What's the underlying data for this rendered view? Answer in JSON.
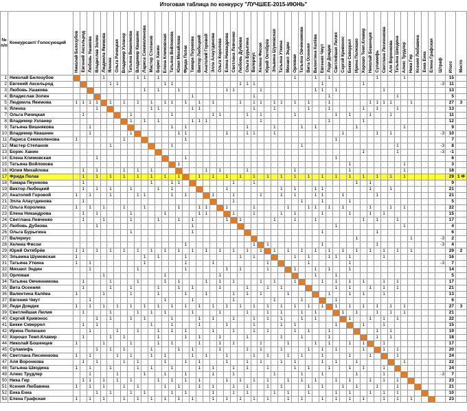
{
  "title": "Итоговая таблица по конкурсу \"ЛУЧШЕЕ-2015-ИЮНЬ\"",
  "header": {
    "num_label": "№ п/п",
    "name_label": "Конкурсант/ Голосующий",
    "penalty_label": "Штраф",
    "total_label": "Итого",
    "place_label": "Место"
  },
  "colors": {
    "diagonal": "#e07b26",
    "highlight": "#ffff33"
  },
  "highlight_row": 17,
  "rows": [
    {
      "n": "1",
      "name": "Николай Белозубов",
      "votes": "....1....11.1...................1..1.1......1...1..",
      "pen": "",
      "total": "15",
      "place": ""
    },
    {
      "n": "2",
      "name": "Евгений Аксельрод",
      "votes": ".....11......11.........111.........1.....1......",
      "pen": "-3",
      "total": "11",
      "place": ""
    },
    {
      "n": "3",
      "name": "Любовь Ушакова",
      "votes": "..........1.1..1......11...1.......11.1......1...",
      "pen": "",
      "total": "13",
      "place": ""
    },
    {
      "n": "4",
      "name": "Владислав Золин",
      "votes": ".................1........1..........1.........1..",
      "pen": "",
      "total": "5",
      "place": ""
    },
    {
      "n": "5",
      "name": "Людмила Якимова",
      "votes": "1111.1.1.1.1.11.1.1.1...1.11.11.1.1..1.....1111..1",
      "pen": "",
      "total": "27",
      "place": "3"
    },
    {
      "n": "6",
      "name": "Яленка",
      "votes": "...1.......11....11.......1..1....1..1....1.1..1..",
      "pen": "",
      "total": "13",
      "place": ""
    },
    {
      "n": "7",
      "name": "Ольга Рачицкая",
      "votes": ".1......1.....1.....11...1.1....1.....1.1..1..1..",
      "pen": "",
      "total": "11",
      "place": ""
    },
    {
      "n": "8",
      "name": "Владимир Узланер",
      "votes": "........1.1.1....111.......1.........1....1.......",
      "pen": "",
      "total": "12",
      "place": ""
    },
    {
      "n": "9",
      "name": "Татьяна Вишнякова",
      "votes": "..1...........1.1........1...1...1.1.....1......1.",
      "pen": "",
      "total": "9",
      "place": ""
    },
    {
      "n": "10",
      "name": "Владимир Квашнин",
      "votes": "..1.....1......11.....1..11..1.........1....1.1..",
      "pen": "-3",
      "total": "10",
      "place": ""
    },
    {
      "n": "11",
      "name": "Лариса Семиколенова",
      "votes": "1......1........1.....................1..........",
      "pen": "",
      "total": "7",
      "place": ""
    },
    {
      "n": "12",
      "name": "Мастер Степанов",
      "votes": ".....1........1..................1.............1.",
      "pen": "-3",
      "total": "8",
      "place": ""
    },
    {
      "n": "13",
      "name": "Борис Ханин",
      "votes": "..........................................1....1..",
      "pen": "-3",
      "total": "-1",
      "place": ""
    },
    {
      "n": "14",
      "name": "Елена Климовская",
      "votes": "...1............1.....................1..........",
      "pen": "",
      "total": "6",
      "place": ""
    },
    {
      "n": "15",
      "name": "Татьяна Войлокова",
      "votes": "...............1........................1.......1",
      "pen": "",
      "total": "3",
      "place": ""
    },
    {
      "n": "16",
      "name": "Юлия Михайлова",
      "votes": ".1.1...1.1.1.......1.1...1......1.......1.......1",
      "pen": "",
      "total": "18",
      "place": ""
    },
    {
      "n": "17",
      "name": "Фрида Полак",
      "votes": ".1.1.1.1.1.1.1.11.1.1.1.1.1.1.1.1.1.1.1.1.1.1.1.1",
      "pen": "",
      "total": "29",
      "place": "1 Ф"
    },
    {
      "n": "18",
      "name": "Тамара Пеункова",
      "votes": ".1.........1..11.......1..1..............1.1.....",
      "pen": "",
      "total": "9",
      "place": ""
    },
    {
      "n": "19",
      "name": "Виктор Любецкий",
      "votes": ".1.1.1..1...1.1...1...1.......1.1..11......1..1.",
      "pen": "",
      "total": "21",
      "place": ""
    },
    {
      "n": "20",
      "name": "Анатолий Горовой",
      "votes": "1.1..1...11...1.1...1..1...1..1.1..11..1....1....",
      "pen": "",
      "total": "21",
      "place": ""
    },
    {
      "n": "21",
      "name": "Элла Алаутдинова",
      "votes": ".1.....................1.........1..1...1........",
      "pen": "",
      "total": "5",
      "place": ""
    },
    {
      "n": "22",
      "name": "Ольга Королева",
      "votes": "1.1.1..1..1....1..11..1...1....1..11.1.1...1..1.1",
      "pen": "",
      "total": "22",
      "place": ""
    },
    {
      "n": "23",
      "name": "Елена Никандрова",
      "votes": ".1.1....1....1....11...1..1...1.1...1...1..1.1...",
      "pen": "",
      "total": "15",
      "place": ""
    },
    {
      "n": "24",
      "name": "Светлана Левченко",
      "votes": ".1..1...1...1..1.1....1.1....1..1..1......1.1..1.",
      "pen": "",
      "total": "17",
      "place": ""
    },
    {
      "n": "25",
      "name": "Любовь Дубкова",
      "votes": "...1.............1....................1.........1",
      "pen": "",
      "total": "4",
      "place": ""
    },
    {
      "n": "26",
      "name": "Ольга Бурыгина",
      "votes": "........1........1..................1.......1.....",
      "pen": "",
      "total": "6",
      "place": ""
    },
    {
      "n": "27",
      "name": "Валериус",
      "votes": ".........................................1.......1",
      "pen": "-3",
      "total": "2",
      "place": ""
    },
    {
      "n": "28",
      "name": "Хелена Фисои",
      "votes": "................1.........1.1.......1.......1.....",
      "pen": "-3",
      "total": "4",
      "place": ""
    },
    {
      "n": "29",
      "name": "Юрий Октябрёв",
      "votes": "11.1.1.1.1.1.1.1.1.1.1.1.1.1.1.1.1.1.1.1.1.1.1.1.1",
      "pen": "",
      "total": "29",
      "place": "2"
    },
    {
      "n": "30",
      "name": "Эльвина Шумовская",
      "votes": "1.........1.1...1.......1.1..1..1.1..11.1....1....",
      "pen": "",
      "total": "16",
      "place": ""
    },
    {
      "n": "31",
      "name": "Татьяна Уткина",
      "votes": "1.1.......1.....1...1.......1.....1.....1........",
      "pen": "-3",
      "total": "7",
      "place": ""
    },
    {
      "n": "32",
      "name": "Михаил Эндин",
      "votes": "..1......1......1.....1.1...1...1..1.1..1.........",
      "pen": "",
      "total": "14",
      "place": ""
    },
    {
      "n": "33",
      "name": "Орловаи",
      "votes": "....1........1.......1..........1..1..1..........",
      "pen": "",
      "total": "5",
      "place": ""
    },
    {
      "n": "34",
      "name": "Татьяна Овчинникова",
      "votes": ".1...1...1...1.1...1.1.1...1.1..1...1.1.1.1..1.1.",
      "pen": "",
      "total": "17",
      "place": ""
    },
    {
      "n": "35",
      "name": "Вита Осенняя",
      "votes": ".1...1..1...1..1.1...1...1..1.1...1...1.1..1.1.1..",
      "pen": "",
      "total": "21",
      "place": ""
    },
    {
      "n": "36",
      "name": "Валентина Калёва",
      "votes": "1...1...1...1...1..1...1.1.1...1...1.1..1.1..1....",
      "pen": "",
      "total": "13",
      "place": ""
    },
    {
      "n": "37",
      "name": "Евгения Чмут",
      "votes": "..1..........1...1.....1.....1...1....1.........",
      "pen": "",
      "total": "6",
      "place": ""
    },
    {
      "n": "38",
      "name": "Леди Дождик",
      "votes": "1.1.1.1.1.1.1.1.1.1.1.1.1.1.1.1.1.1.1.1.1.1.1.1.1.",
      "pen": "",
      "total": "27",
      "place": "3"
    },
    {
      "n": "39",
      "name": "Светлейшая Лилия",
      "votes": ".1...1...1.1.1...1...1...1..1.1..1.1...1.1..1.1.1",
      "pen": "",
      "total": "21",
      "place": ""
    },
    {
      "n": "40",
      "name": "Сергей Кривонос",
      "votes": "...1.1..1.1...1...1.1..1..1.1.1..1.1....1..1.1.1..",
      "pen": "",
      "total": "22",
      "place": ""
    },
    {
      "n": "41",
      "name": "Бекки Скверрел",
      "votes": ".1.1.......1..1...1...1...1...1.1.....1...1..1...",
      "pen": "",
      "total": "15",
      "place": ""
    },
    {
      "n": "42",
      "name": "Ирина Полюшко",
      "votes": "..1...1..1..1.1.1...1..1..1.1...1.1..1...1..1.1...",
      "pen": "",
      "total": "19",
      "place": ""
    },
    {
      "n": "43",
      "name": "Хорошо Темп.Клавир",
      "votes": ".1...1.1....1...1.1..1...1....1..1...1....1.1.1..",
      "pen": "",
      "total": "18",
      "place": ""
    },
    {
      "n": "44",
      "name": "Николай Бошенцев",
      "votes": "1...1...1...1.1...1..1.1...1...1...1.1..1.1..1...",
      "pen": "",
      "total": "17",
      "place": ""
    },
    {
      "n": "45",
      "name": "Суламифь",
      "votes": "...1.1.1...1...1.1...1...1.1..1...1.1.1...1..1.1..",
      "pen": "",
      "total": "20",
      "place": ""
    },
    {
      "n": "46",
      "name": "Светлана Лисиенкова",
      "votes": "1.1...1.1..1.1...1.1..1...1.1..1.1..1...1..1.1.1..",
      "pen": "",
      "total": "24",
      "place": ""
    },
    {
      "n": "47",
      "name": "Аля Воронкова",
      "votes": ".1.1...1.1...1..1.1...1..1.1..1.1...1.1..1....1.1.",
      "pen": "",
      "total": "22",
      "place": ""
    },
    {
      "n": "48",
      "name": "Татьяна Шкодина",
      "votes": "1.1..1...1.1..1...1.1..1.1..1...1.1..1..1.1..1...",
      "pen": "",
      "total": "24",
      "place": ""
    },
    {
      "n": "49",
      "name": "Алекс  Трудлер",
      "votes": "..1...1...1..1..1...1..1.....1...1..1....1...1...",
      "pen": "-3",
      "total": "7",
      "place": ""
    },
    {
      "n": "50",
      "name": "Ника Гир",
      "votes": ".11.1.1.1...1.1.1.1...1.1.1.1..1.1.1..1.1..1.1.1..",
      "pen": "",
      "total": "23",
      "place": ""
    },
    {
      "n": "51",
      "name": "Ксения Любавина",
      "votes": "1.1.1..1.1...1.1..1.1..1.1..1.1...1.1..1.1..1..1.",
      "pen": "",
      "total": "21",
      "place": ""
    },
    {
      "n": "52",
      "name": "Енка Енка",
      "votes": "...1.1..1.1...1.1...1..1.1...1.1..1...1.1..1.1.1..",
      "pen": "",
      "total": "10",
      "place": ""
    },
    {
      "n": "53",
      "name": "Елена Графская",
      "votes": "1.1.1..1.1.1.1.1.1..1.1.1.1.1..1.1..1.1.1.1..1.1.1",
      "pen": "",
      "total": "23",
      "place": ""
    }
  ]
}
